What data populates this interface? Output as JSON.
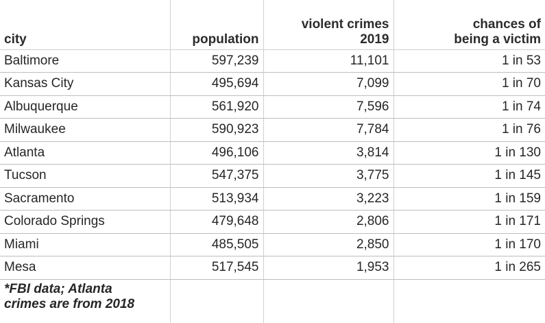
{
  "table": {
    "headers": {
      "city": "city",
      "population": "population",
      "violent_crimes_line1": "violent crimes",
      "violent_crimes_line2": "2019",
      "chances_line1": "chances of",
      "chances_line2": "being a victim"
    },
    "rows": [
      {
        "city": "Baltimore",
        "population": "597,239",
        "violent_crimes": "11,101",
        "chances": "1 in 53"
      },
      {
        "city": "Kansas City",
        "population": "495,694",
        "violent_crimes": "7,099",
        "chances": "1 in 70"
      },
      {
        "city": "Albuquerque",
        "population": "561,920",
        "violent_crimes": "7,596",
        "chances": "1 in 74"
      },
      {
        "city": "Milwaukee",
        "population": "590,923",
        "violent_crimes": "7,784",
        "chances": "1 in 76"
      },
      {
        "city": "Atlanta",
        "population": "496,106",
        "violent_crimes": "3,814",
        "chances": "1 in 130"
      },
      {
        "city": "Tucson",
        "population": "547,375",
        "violent_crimes": "3,775",
        "chances": "1 in 145"
      },
      {
        "city": "Sacramento",
        "population": "513,934",
        "violent_crimes": "3,223",
        "chances": "1 in 159"
      },
      {
        "city": "Colorado Springs",
        "population": "479,648",
        "violent_crimes": "2,806",
        "chances": "1 in 171"
      },
      {
        "city": "Miami",
        "population": "485,505",
        "violent_crimes": "2,850",
        "chances": "1 in 170"
      },
      {
        "city": "Mesa",
        "population": "517,545",
        "violent_crimes": "1,953",
        "chances": "1 in 265"
      }
    ],
    "footnote_line1": "*FBI data; Atlanta",
    "footnote_line2": "crimes are from 2018"
  }
}
